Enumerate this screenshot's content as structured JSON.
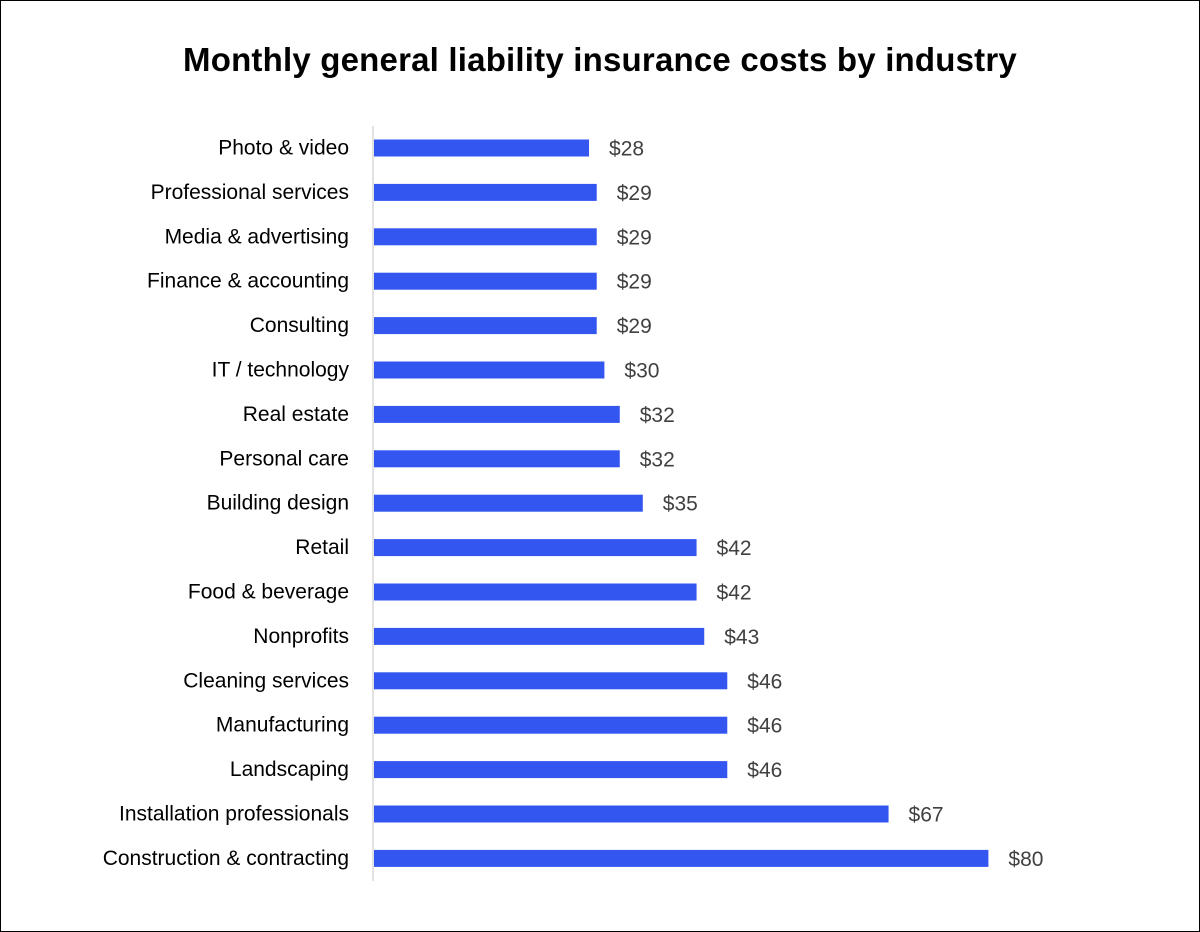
{
  "chart_data": {
    "type": "bar",
    "orientation": "horizontal",
    "title": "Monthly general liability insurance costs by industry",
    "xlabel": "",
    "ylabel": "",
    "xlim": [
      0,
      80
    ],
    "value_prefix": "$",
    "grid": false,
    "legend": "none",
    "bar_color": "#3355f0",
    "categories": [
      "Photo & video",
      "Professional services",
      "Media & advertising",
      "Finance & accounting",
      "Consulting",
      "IT / technology",
      "Real estate",
      "Personal care",
      "Building design",
      "Retail",
      "Food & beverage",
      "Nonprofits",
      "Cleaning services",
      "Manufacturing",
      "Landscaping",
      "Installation professionals",
      "Construction & contracting"
    ],
    "values": [
      28,
      29,
      29,
      29,
      29,
      30,
      32,
      32,
      35,
      42,
      42,
      43,
      46,
      46,
      46,
      67,
      80
    ],
    "value_labels": [
      "$28",
      "$29",
      "$29",
      "$29",
      "$29",
      "$30",
      "$32",
      "$32",
      "$35",
      "$42",
      "$42",
      "$43",
      "$46",
      "$46",
      "$46",
      "$67",
      "$80"
    ]
  }
}
